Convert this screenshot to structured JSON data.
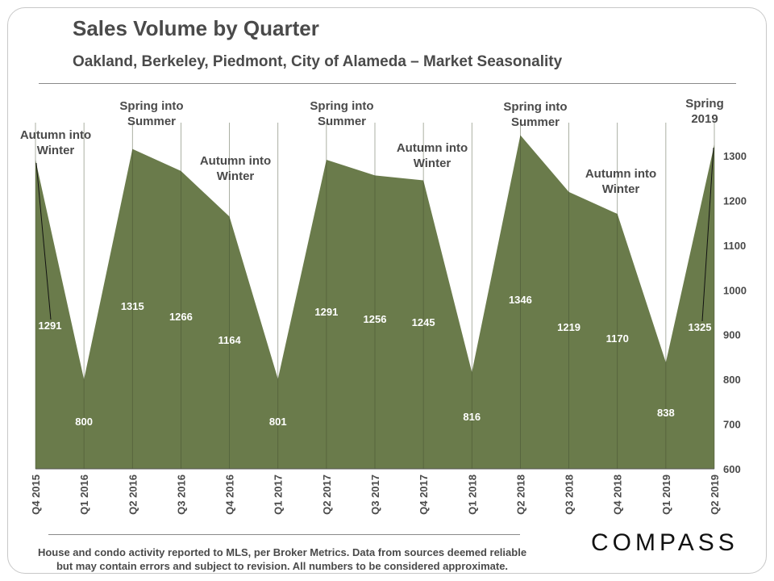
{
  "header": {
    "title": "Sales Volume by Quarter",
    "subtitle": "Oakland, Berkeley, Piedmont, City of Alameda – Market Seasonality"
  },
  "footer": {
    "line1": "House and condo activity reported to MLS, per Broker Metrics. Data from sources deemed reliable",
    "line2": "but may contain errors and subject to revision. All numbers to be considered approximate.",
    "logo": "COMPASS"
  },
  "colors": {
    "area_fill": "#6a7b4b",
    "text_dark": "#4a4a4a",
    "label_white": "#ffffff"
  },
  "chart_data": {
    "type": "area",
    "title": "Sales Volume by Quarter",
    "subtitle": "Oakland, Berkeley, Piedmont, City of Alameda – Market Seasonality",
    "categories": [
      "Q4 2015",
      "Q1 2016",
      "Q2 2016",
      "Q3 2016",
      "Q4 2016",
      "Q1 2017",
      "Q2 2017",
      "Q3 2017",
      "Q4 2017",
      "Q1 2018",
      "Q2 2018",
      "Q3 2018",
      "Q4 2018",
      "Q1 2019",
      "Q2 2019"
    ],
    "values": [
      1291,
      800,
      1315,
      1266,
      1164,
      801,
      1291,
      1256,
      1245,
      816,
      1346,
      1219,
      1170,
      838,
      1325
    ],
    "ylim": [
      600,
      1350
    ],
    "yticks": [
      600,
      700,
      800,
      900,
      1000,
      1100,
      1200,
      1300
    ],
    "y_axis_side": "right",
    "grid": "vertical lines at each quarter",
    "annotations": [
      {
        "category": "Q4 2015",
        "lines": [
          "Autumn into",
          "Winter"
        ]
      },
      {
        "category": "Q2 2016",
        "lines": [
          "Spring into",
          "Summer"
        ]
      },
      {
        "category": "Q4 2016",
        "lines": [
          "Autumn into",
          "Winter"
        ]
      },
      {
        "category": "Q2 2017",
        "lines": [
          "Spring into",
          "Summer"
        ]
      },
      {
        "category": "Q4 2017",
        "lines": [
          "Autumn into",
          "Winter"
        ]
      },
      {
        "category": "Q2 2018",
        "lines": [
          "Spring into",
          "Summer"
        ]
      },
      {
        "category": "Q4 2018",
        "lines": [
          "Autumn into",
          "Winter"
        ]
      },
      {
        "category": "Q2 2019",
        "lines": [
          "Spring",
          "2019"
        ]
      }
    ]
  }
}
